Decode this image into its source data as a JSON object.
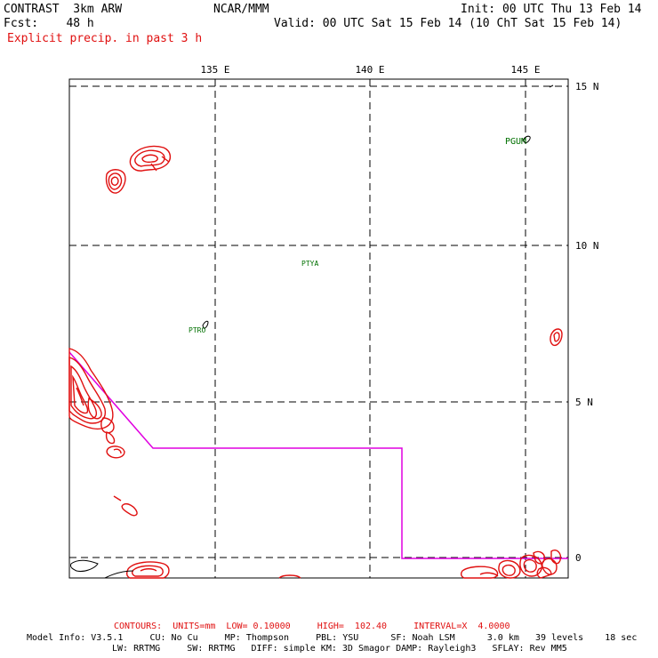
{
  "header": {
    "model": "CONTRAST  3km ARW",
    "fcst": "Fcst:    48 h",
    "field": "Explicit precip. in past 3 h",
    "center": "NCAR/MMM",
    "init": "Init: 00 UTC Thu 13 Feb 14",
    "valid": "Valid: 00 UTC Sat 15 Feb 14 (10 ChT Sat 15 Feb 14)"
  },
  "axes": {
    "lon_labels": [
      "135 E",
      "140 E",
      "145 E"
    ],
    "lat_labels": [
      "15 N",
      "10 N",
      "5 N",
      "0"
    ]
  },
  "stations": [
    "PGUM",
    "PTYA",
    "PTRO"
  ],
  "colors": {
    "precip_contour": "#e01010",
    "domain_boundary": "#e000e0",
    "station_label": "#007000",
    "grid": "#000000"
  },
  "footer": {
    "contours": "CONTOURS:  UNITS=mm  LOW= 0.10000     HIGH=  102.40     INTERVAL=X  4.0000",
    "model_info_1": "Model Info: V3.5.1     CU: No Cu     MP: Thompson     PBL: YSU      SF: Noah LSM      3.0 km   39 levels    18 sec",
    "model_info_2": "LW: RRTMG     SW: RRTMG   DIFF: simple KM: 3D Smagor DAMP: Rayleigh3   SFLAY: Rev MM5"
  }
}
